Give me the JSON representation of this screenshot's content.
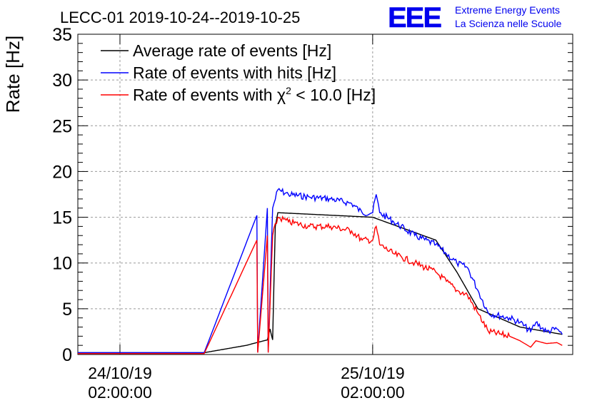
{
  "header": {
    "title": "LECC-01 2019-10-24--2019-10-25",
    "logo_text": "EEE",
    "project_line1": "Extreme Energy Events",
    "project_line2": "La Scienza nelle Scuole"
  },
  "colors": {
    "average": "#000000",
    "hits": "#0000ff",
    "chi2": "#ff0000",
    "logo": "#0000ee"
  },
  "chart_data": {
    "type": "line",
    "ylabel": "Rate [Hz]",
    "ylim": [
      0,
      35
    ],
    "yticks": [
      "0",
      "5",
      "10",
      "15",
      "20",
      "25",
      "30",
      "35"
    ],
    "xlim": [
      "2019-10-23 22:00",
      "2019-10-25 21:00"
    ],
    "xticks": [
      {
        "date": "24/10/19",
        "time": "02:00:00",
        "x": "2019-10-24 02:00"
      },
      {
        "date": "25/10/19",
        "time": "02:00:00",
        "x": "2019-10-25 02:00"
      }
    ],
    "grid": true,
    "legend_position": "top-left",
    "series": [
      {
        "name": "Average rate of events [Hz]",
        "color": "#000000",
        "x": [
          "2019-10-23 22:00",
          "2019-10-24 10:00",
          "2019-10-24 14:00",
          "2019-10-24 16:00",
          "2019-10-24 16:15",
          "2019-10-24 16:30",
          "2019-10-24 16:45",
          "2019-10-24 17:00",
          "2019-10-25 02:00",
          "2019-10-25 08:00",
          "2019-10-25 10:00",
          "2019-10-25 12:00",
          "2019-10-25 14:00",
          "2019-10-25 16:00",
          "2019-10-25 18:00",
          "2019-10-25 20:00"
        ],
        "values": [
          0.2,
          0.2,
          1.0,
          1.6,
          2.8,
          1.6,
          14.0,
          15.5,
          15.0,
          12.5,
          9.0,
          5.0,
          4.0,
          3.0,
          2.6,
          2.2
        ]
      },
      {
        "name": "Rate of events with hits [Hz]",
        "color": "#0000ff",
        "x": [
          "2019-10-23 22:00",
          "2019-10-24 10:00",
          "2019-10-24 15:00",
          "2019-10-24 15:05",
          "2019-10-24 16:00",
          "2019-10-24 16:05",
          "2019-10-24 16:30",
          "2019-10-24 17:00",
          "2019-10-24 18:00",
          "2019-10-24 20:00",
          "2019-10-24 22:00",
          "2019-10-25 00:00",
          "2019-10-25 01:00",
          "2019-10-25 02:00",
          "2019-10-25 02:20",
          "2019-10-25 02:40",
          "2019-10-25 04:00",
          "2019-10-25 06:00",
          "2019-10-25 08:00",
          "2019-10-25 09:00",
          "2019-10-25 10:00",
          "2019-10-25 11:00",
          "2019-10-25 12:00",
          "2019-10-25 13:00",
          "2019-10-25 15:00",
          "2019-10-25 16:00",
          "2019-10-25 17:00",
          "2019-10-25 17:30",
          "2019-10-25 18:30",
          "2019-10-25 19:30",
          "2019-10-25 20:00"
        ],
        "values": [
          0.2,
          0.2,
          15.2,
          0.3,
          16.0,
          0.3,
          16.0,
          18.0,
          17.5,
          17.2,
          17.0,
          16.5,
          15.5,
          15.5,
          17.5,
          15.5,
          14.5,
          13.0,
          12.0,
          11.0,
          10.0,
          9.5,
          7.0,
          4.5,
          4.0,
          3.5,
          2.5,
          3.5,
          2.5,
          2.8,
          2.2
        ]
      },
      {
        "name": "Rate of events with χ² < 10.0 [Hz]",
        "label_main": "Rate of events with ",
        "label_chi": "χ",
        "label_sup": "2",
        "label_rest": " < 10.0 [Hz]",
        "color": "#ff0000",
        "x": [
          "2019-10-23 22:00",
          "2019-10-24 10:00",
          "2019-10-24 15:00",
          "2019-10-24 15:05",
          "2019-10-24 16:00",
          "2019-10-24 16:05",
          "2019-10-24 16:30",
          "2019-10-24 17:00",
          "2019-10-24 18:00",
          "2019-10-24 20:00",
          "2019-10-24 22:00",
          "2019-10-25 00:00",
          "2019-10-25 01:00",
          "2019-10-25 02:00",
          "2019-10-25 02:20",
          "2019-10-25 02:40",
          "2019-10-25 04:00",
          "2019-10-25 06:00",
          "2019-10-25 08:00",
          "2019-10-25 09:00",
          "2019-10-25 10:00",
          "2019-10-25 11:00",
          "2019-10-25 12:00",
          "2019-10-25 13:00",
          "2019-10-25 15:00",
          "2019-10-25 16:00",
          "2019-10-25 17:00",
          "2019-10-25 17:30",
          "2019-10-25 18:30",
          "2019-10-25 19:30",
          "2019-10-25 20:00"
        ],
        "values": [
          0.1,
          0.1,
          12.5,
          0.2,
          13.0,
          0.2,
          13.0,
          15.0,
          14.5,
          14.0,
          14.0,
          13.5,
          12.5,
          12.5,
          14.0,
          12.0,
          11.0,
          10.0,
          9.0,
          8.0,
          7.0,
          6.5,
          4.5,
          2.5,
          2.0,
          1.5,
          0.8,
          1.5,
          1.2,
          1.3,
          1.0
        ]
      }
    ]
  }
}
